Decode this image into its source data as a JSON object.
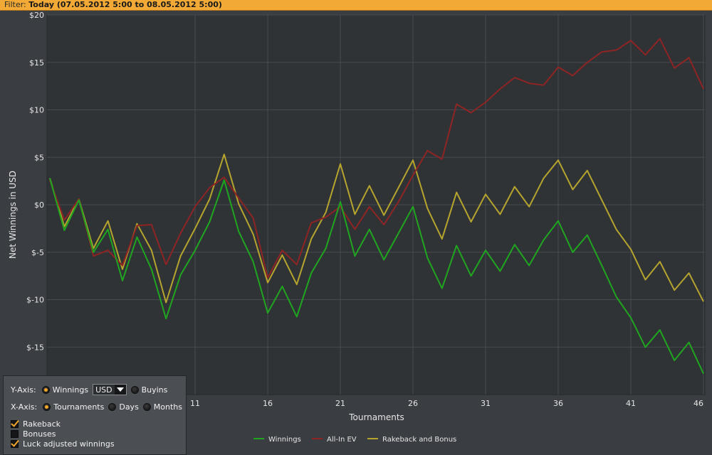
{
  "filter": {
    "label": "Filter:",
    "value": "Today (07.05.2012 5:00 to 08.05.2012 5:00)"
  },
  "chart_data": {
    "type": "line",
    "xlabel": "Tournaments",
    "ylabel": "Net Winnings in USD",
    "x_ticks": [
      11,
      16,
      21,
      26,
      31,
      36,
      41,
      46
    ],
    "y_ticks": [
      -15,
      -10,
      -5,
      0,
      5,
      10,
      15,
      20
    ],
    "y_tick_labels": [
      "$-15",
      "$-10",
      "$-5",
      "$0",
      "$5",
      "$10",
      "$15",
      "$20"
    ],
    "xlim": [
      1,
      46
    ],
    "ylim": [
      -20,
      20
    ],
    "grid": true,
    "legend_position": "bottom-center",
    "x": [
      1,
      2,
      3,
      4,
      5,
      6,
      7,
      8,
      9,
      10,
      11,
      12,
      13,
      14,
      15,
      16,
      17,
      18,
      19,
      20,
      21,
      22,
      23,
      24,
      25,
      26,
      27,
      28,
      29,
      30,
      31,
      32,
      33,
      34,
      35,
      36,
      37,
      38,
      39,
      40,
      41,
      42,
      43,
      44,
      45,
      46
    ],
    "series": [
      {
        "name": "Winnings",
        "color": "#1fa51f",
        "values": [
          2.8,
          -2.7,
          0.5,
          -5.0,
          -2.6,
          -8.0,
          -3.4,
          -6.8,
          -12.0,
          -7.4,
          -4.8,
          -1.8,
          2.6,
          -2.8,
          -6.0,
          -11.4,
          -8.6,
          -11.8,
          -7.2,
          -4.6,
          0.3,
          -5.4,
          -2.6,
          -5.8,
          -3.0,
          -0.2,
          -5.6,
          -8.8,
          -4.3,
          -7.5,
          -4.8,
          -7.0,
          -4.2,
          -6.4,
          -3.7,
          -1.7,
          -5.0,
          -3.2,
          -6.4,
          -9.7,
          -11.9,
          -15.0,
          -13.2,
          -16.4,
          -14.5,
          -17.8
        ]
      },
      {
        "name": "All-In EV",
        "color": "#8e2424",
        "values": [
          2.6,
          -1.6,
          0.6,
          -5.4,
          -4.8,
          -6.4,
          -2.2,
          -2.1,
          -6.3,
          -3.0,
          -0.2,
          1.8,
          2.9,
          0.7,
          -1.4,
          -7.7,
          -4.8,
          -6.3,
          -1.9,
          -1.3,
          -0.2,
          -2.6,
          -0.2,
          -2.1,
          0.3,
          3.1,
          5.7,
          4.8,
          10.6,
          9.7,
          10.8,
          12.2,
          13.4,
          12.8,
          12.6,
          14.5,
          13.6,
          15.0,
          16.1,
          16.3,
          17.3,
          15.8,
          17.5,
          14.4,
          15.5,
          12.2
        ]
      },
      {
        "name": "Rakeback and Bonus",
        "color": "#b5a42e",
        "values": [
          2.8,
          -2.3,
          0.6,
          -4.6,
          -1.7,
          -6.8,
          -2.0,
          -4.8,
          -10.3,
          -5.4,
          -2.5,
          0.6,
          5.3,
          0.1,
          -3.1,
          -8.2,
          -5.3,
          -8.4,
          -3.6,
          -0.8,
          4.3,
          -1.0,
          2.0,
          -1.1,
          1.8,
          4.7,
          -0.4,
          -3.6,
          1.3,
          -1.8,
          1.1,
          -1.0,
          1.9,
          -0.2,
          2.8,
          4.7,
          1.6,
          3.6,
          0.5,
          -2.6,
          -4.7,
          -7.9,
          -6.0,
          -9.0,
          -7.2,
          -10.2
        ]
      }
    ]
  },
  "panel": {
    "y_axis_label": "Y-Axis:",
    "winnings_label": "Winnings",
    "currency_value": "USD",
    "buyins_label": "Buyins",
    "x_axis_label": "X-Axis:",
    "tournaments_label": "Tournaments",
    "days_label": "Days",
    "months_label": "Months",
    "rakeback_label": "Rakeback",
    "bonuses_label": "Bonuses",
    "luck_adjusted_label": "Luck adjusted winnings"
  }
}
